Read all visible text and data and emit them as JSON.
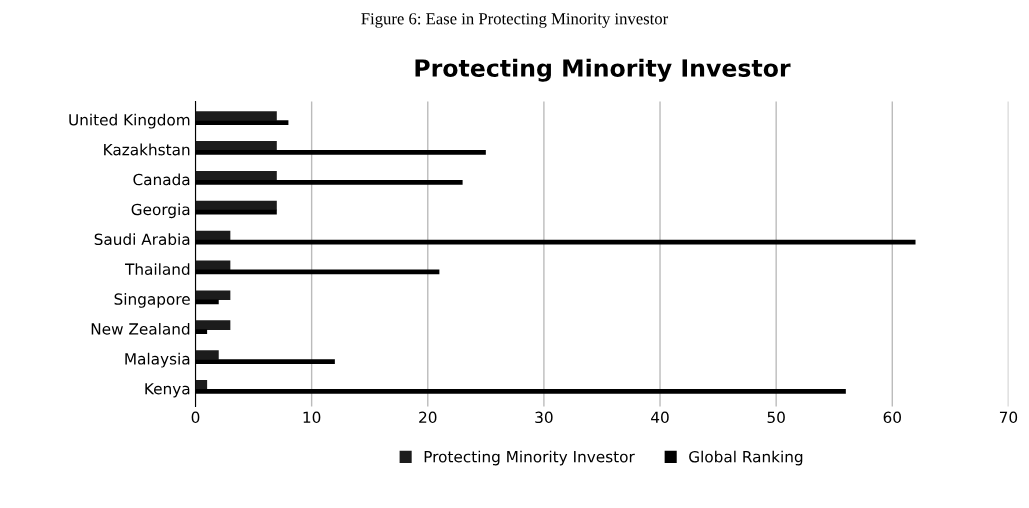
{
  "chart_data": {
    "type": "bar",
    "orientation": "horizontal",
    "title": "Figure 6: Ease in Protecting Minority investor",
    "subtitle": "Protecting Minority Investor",
    "categories": [
      "United Kingdom",
      "Kazakhstan",
      "Canada",
      "Georgia",
      "Saudi Arabia",
      "Thailand",
      "Singapore",
      "New Zealand",
      "Malaysia",
      "Kenya"
    ],
    "series": [
      {
        "name": "Protecting Minority Investor",
        "color": "#1c1c1c",
        "values": [
          7,
          7,
          7,
          7,
          3,
          3,
          3,
          3,
          2,
          1
        ]
      },
      {
        "name": "Global Ranking",
        "color": "#000000",
        "values": [
          8,
          25,
          23,
          7,
          62,
          21,
          2,
          1,
          12,
          56
        ]
      }
    ],
    "xlim": [
      0,
      70
    ],
    "xticks": [
      0,
      10,
      20,
      30,
      40,
      50,
      60,
      70
    ],
    "grid": "x",
    "legend": "bottom"
  }
}
